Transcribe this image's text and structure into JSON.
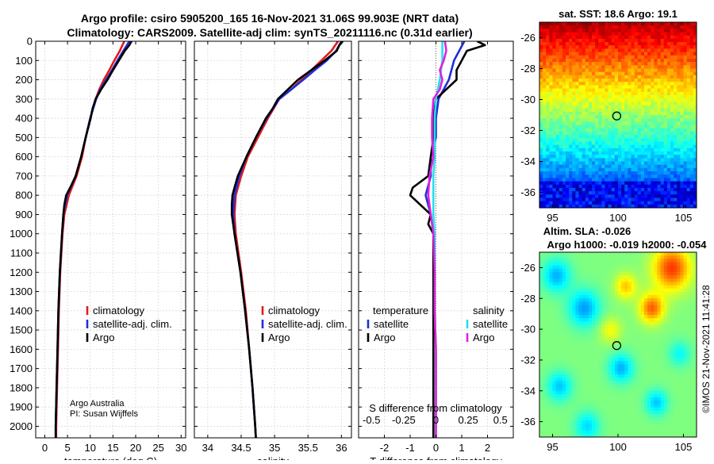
{
  "title": {
    "line1": "Argo profile: csiro 5905200_165 16-Nov-2021 31.06S 99.903E (NRT data)",
    "line2": "Climatology: CARS2009. Satellite-adj clim: synTS_20211116.nc (0.31d earlier)"
  },
  "credit": {
    "line1": "Argo Australia",
    "line2": "PI: Susan Wijffels"
  },
  "watermark": "©IMOS 21-Nov-2021 11:41:28",
  "colors": {
    "climatology": "#e41a1c",
    "satellite": "#1f2fd6",
    "argo": "#000000",
    "sat_t": "#22e0f0",
    "argo_s": "#e020e0"
  },
  "chart_data": [
    {
      "type": "line",
      "name": "temperature-profile",
      "xlabel": "temperature (deg C)",
      "ylabel": "",
      "xlim": [
        -2,
        31
      ],
      "ylim": [
        2060,
        0
      ],
      "x_ticks": [
        0,
        5,
        10,
        15,
        20,
        25,
        30
      ],
      "y_ticks": [
        0,
        100,
        200,
        300,
        400,
        500,
        600,
        700,
        800,
        900,
        1000,
        1100,
        1200,
        1300,
        1400,
        1500,
        1600,
        1700,
        1800,
        1900,
        2000
      ],
      "legend": [
        "climatology",
        "satellite-adj. clim.",
        "Argo"
      ],
      "series": [
        {
          "name": "climatology",
          "depth": [
            0,
            50,
            100,
            150,
            200,
            250,
            300,
            400,
            500,
            600,
            700,
            800,
            900,
            1000,
            1200,
            1400,
            1600,
            1800,
            2000,
            2060
          ],
          "values": [
            17.5,
            16.5,
            15.3,
            14.2,
            13.0,
            12.0,
            11.2,
            10.0,
            9.0,
            8.2,
            7.0,
            5.3,
            4.3,
            3.9,
            3.4,
            3.1,
            2.9,
            2.7,
            2.5,
            2.5
          ]
        },
        {
          "name": "satellite-adj. clim.",
          "depth": [
            0,
            50,
            100,
            150,
            200,
            250,
            300,
            400,
            500,
            600,
            700,
            800,
            900,
            1000,
            1200,
            1400,
            1600,
            1800,
            2000,
            2060
          ],
          "values": [
            18.6,
            17.3,
            16.0,
            14.8,
            13.5,
            12.2,
            11.3,
            10.0,
            9.0,
            8.0,
            6.8,
            4.9,
            4.1,
            3.8,
            3.3,
            3.0,
            2.8,
            2.6,
            2.4,
            2.4
          ]
        },
        {
          "name": "Argo",
          "depth": [
            0,
            20,
            50,
            100,
            150,
            200,
            250,
            300,
            350,
            400,
            500,
            600,
            700,
            760,
            800,
            850,
            900,
            1000,
            1200,
            1400,
            1600,
            1800,
            2000,
            2060
          ],
          "values": [
            19.1,
            18.6,
            17.6,
            16.3,
            15.0,
            13.8,
            12.4,
            11.2,
            10.5,
            10.1,
            9.0,
            8.0,
            6.8,
            5.6,
            4.7,
            4.3,
            4.1,
            3.8,
            3.3,
            3.0,
            2.8,
            2.6,
            2.4,
            2.4
          ]
        }
      ]
    },
    {
      "type": "line",
      "name": "salinity-profile",
      "xlabel": "salinity",
      "ylabel": "",
      "xlim": [
        33.8,
        36.15
      ],
      "ylim": [
        2060,
        0
      ],
      "x_ticks": [
        34,
        34.5,
        35,
        35.5,
        36
      ],
      "legend": [
        "climatology",
        "satellite-adj. clim.",
        "Argo"
      ],
      "series": [
        {
          "name": "climatology",
          "depth": [
            0,
            50,
            100,
            150,
            200,
            250,
            300,
            400,
            500,
            600,
            700,
            800,
            900,
            1000,
            1200,
            1400,
            1600,
            1800,
            2000,
            2060
          ],
          "values": [
            35.95,
            35.85,
            35.7,
            35.55,
            35.4,
            35.25,
            35.07,
            34.9,
            34.75,
            34.6,
            34.5,
            34.42,
            34.4,
            34.42,
            34.5,
            34.57,
            34.62,
            34.67,
            34.71,
            34.72
          ]
        },
        {
          "name": "satellite-adj. clim.",
          "depth": [
            0,
            50,
            100,
            150,
            200,
            250,
            300,
            400,
            500,
            600,
            700,
            800,
            900,
            1000,
            1200,
            1400,
            1600,
            1800,
            2000,
            2060
          ],
          "values": [
            36.0,
            35.92,
            35.78,
            35.6,
            35.43,
            35.25,
            35.07,
            34.88,
            34.72,
            34.58,
            34.47,
            34.4,
            34.38,
            34.4,
            34.49,
            34.56,
            34.62,
            34.67,
            34.71,
            34.72
          ]
        },
        {
          "name": "Argo",
          "depth": [
            0,
            20,
            50,
            100,
            150,
            200,
            250,
            300,
            350,
            400,
            500,
            600,
            700,
            760,
            800,
            850,
            900,
            1000,
            1200,
            1400,
            1600,
            1800,
            2000,
            2060
          ],
          "values": [
            36.02,
            35.97,
            35.93,
            35.75,
            35.55,
            35.35,
            35.2,
            35.05,
            34.97,
            34.87,
            34.72,
            34.58,
            34.45,
            34.4,
            34.37,
            34.36,
            34.36,
            34.4,
            34.49,
            34.56,
            34.62,
            34.67,
            34.71,
            34.72
          ]
        }
      ]
    },
    {
      "type": "line",
      "name": "difference-profile",
      "xlabel": "T difference from climatology",
      "x2label": "S difference from climatology",
      "ylabel": "",
      "xlim": [
        -3,
        3
      ],
      "ylim": [
        2060,
        0
      ],
      "x_ticks": [
        -2,
        -1,
        0,
        1,
        2
      ],
      "x_tick_labels": [
        "-2",
        "-1",
        "0",
        "1",
        "2"
      ],
      "s_ticks": [
        -0.5,
        -0.25,
        0,
        0.25,
        0.5
      ],
      "s_tick_labels": [
        "-0.5",
        "-0.25",
        "0",
        "0.25",
        "0.5"
      ],
      "s_scale_note": "S difference plotted on x-axis scale where 0.5 salinity = 2.5 deg C",
      "legend_temperature": [
        "temperature",
        "satellite",
        "Argo"
      ],
      "legend_salinity": [
        "salinity",
        "satellite",
        "Argo"
      ],
      "series": [
        {
          "name": "T satellite",
          "depth": [
            0,
            100,
            200,
            300,
            400,
            500,
            600,
            700,
            800,
            900,
            1000,
            1200,
            1400,
            1600,
            2000,
            2060
          ],
          "values": [
            1.1,
            0.7,
            0.5,
            0.1,
            0.0,
            0.0,
            -0.2,
            -0.2,
            -0.4,
            -0.2,
            -0.1,
            -0.1,
            -0.1,
            -0.1,
            -0.1,
            -0.1
          ]
        },
        {
          "name": "T Argo",
          "depth": [
            0,
            20,
            50,
            100,
            150,
            200,
            250,
            300,
            400,
            500,
            600,
            700,
            760,
            800,
            850,
            900,
            950,
            1000,
            1100,
            1200,
            1400,
            1600,
            1800,
            2000,
            2060
          ],
          "values": [
            1.6,
            1.9,
            1.2,
            1.0,
            0.8,
            0.8,
            0.4,
            0.0,
            -0.1,
            -0.1,
            -0.2,
            -0.3,
            -0.9,
            -1.0,
            -0.6,
            -0.2,
            -0.3,
            -0.1,
            -0.1,
            -0.1,
            -0.1,
            -0.1,
            -0.1,
            -0.1,
            -0.1
          ]
        },
        {
          "name": "S satellite",
          "depth": [
            0,
            100,
            200,
            300,
            400,
            500,
            600,
            700,
            800,
            900,
            1000,
            1200,
            1400,
            1600,
            2000,
            2060
          ],
          "values": [
            0.05,
            0.05,
            0.03,
            0.0,
            -0.01,
            -0.01,
            -0.01,
            -0.02,
            -0.02,
            -0.02,
            -0.01,
            -0.01,
            -0.01,
            0.0,
            0.0,
            0.0
          ]
        },
        {
          "name": "S Argo",
          "depth": [
            0,
            50,
            100,
            150,
            200,
            250,
            300,
            400,
            500,
            600,
            700,
            800,
            900,
            1000,
            1200,
            1400,
            1600,
            2000,
            2060
          ],
          "values": [
            0.07,
            0.08,
            0.06,
            0.03,
            0.05,
            0.03,
            -0.02,
            -0.03,
            -0.03,
            -0.02,
            -0.05,
            -0.06,
            -0.04,
            -0.02,
            -0.01,
            -0.01,
            0.0,
            0.0,
            0.0
          ]
        }
      ]
    },
    {
      "type": "heatmap",
      "name": "sst-map",
      "title": "sat. SST: 18.6 Argo: 19.1",
      "xlim": [
        94,
        106
      ],
      "ylim": [
        -37,
        -25
      ],
      "x_ticks": [
        95,
        100,
        105
      ],
      "y_ticks": [
        -26,
        -28,
        -30,
        -32,
        -34,
        -36
      ],
      "argo_position": [
        99.903,
        -31.06
      ]
    },
    {
      "type": "heatmap",
      "name": "sla-map",
      "title1": "Altim. SLA: -0.026",
      "title2": "Argo h1000: -0.019 h2000: -0.054",
      "xlim": [
        94,
        106
      ],
      "ylim": [
        -37,
        -25
      ],
      "x_ticks": [
        95,
        100,
        105
      ],
      "y_ticks": [
        -26,
        -28,
        -30,
        -32,
        -34,
        -36
      ],
      "argo_position": [
        99.903,
        -31.06
      ]
    }
  ]
}
